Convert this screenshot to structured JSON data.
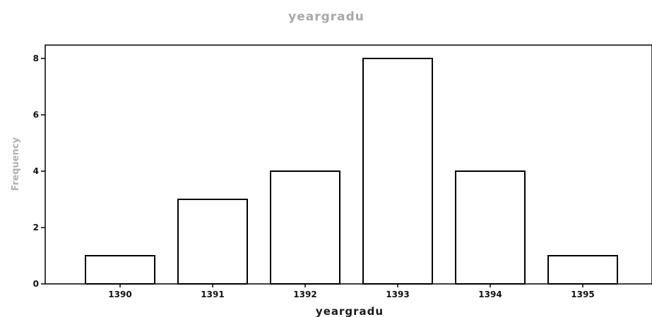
{
  "chart_data": {
    "type": "bar",
    "title": "yeargradu",
    "xlabel": "yeargradu",
    "ylabel": "Frequency",
    "categories": [
      "1390",
      "1391",
      "1392",
      "1393",
      "1394",
      "1395"
    ],
    "values": [
      1,
      3,
      4,
      8,
      4,
      1
    ],
    "ylim": [
      0,
      8
    ],
    "yticks": [
      "0",
      "2",
      "4",
      "6",
      "8"
    ],
    "grid": false,
    "colors": {
      "bar_fill": "#ffffff",
      "bar_stroke": "#000000",
      "title": "#a8a8a8",
      "ylabel": "#b0b0b0"
    }
  }
}
